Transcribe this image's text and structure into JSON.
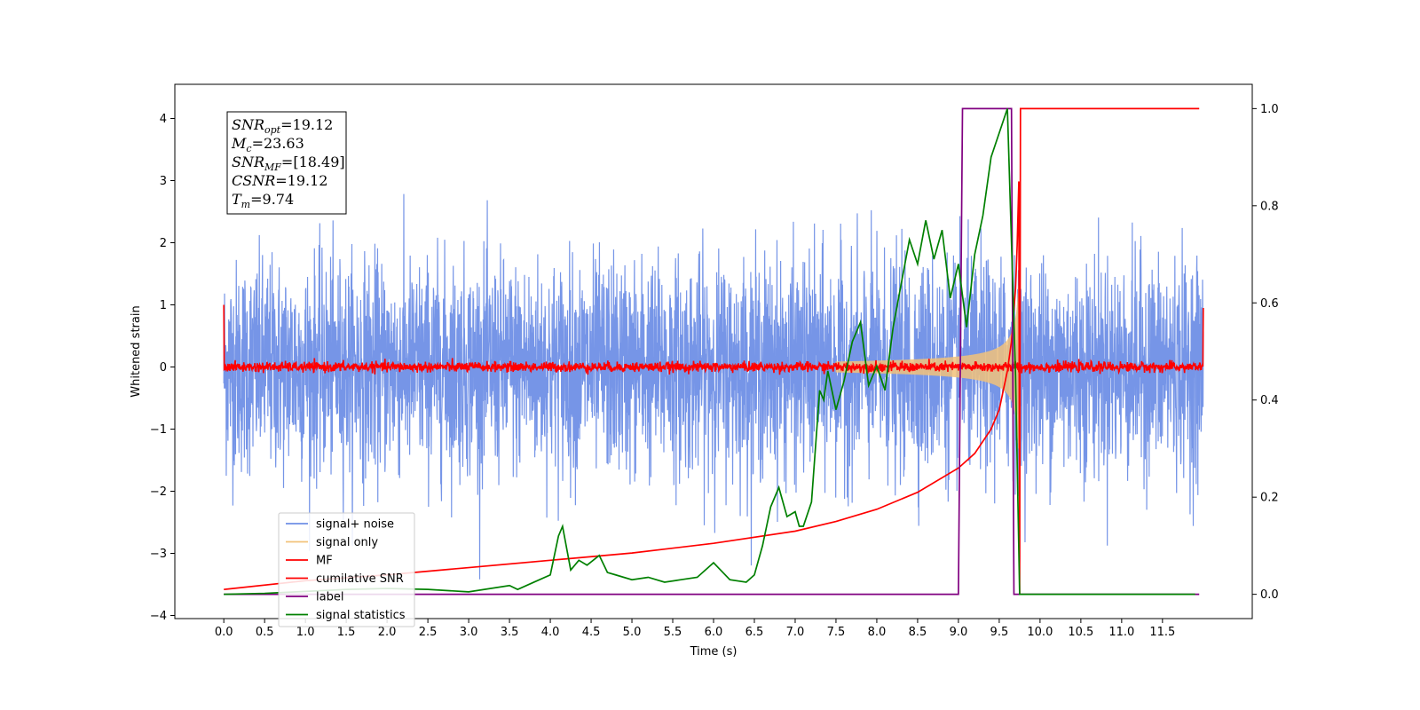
{
  "chart_data": {
    "type": "line",
    "xlabel": "Time (s)",
    "ylabel": "Whitened strain",
    "xlim": [
      -0.6,
      12.6
    ],
    "ylim_left": [
      -4.05,
      4.55
    ],
    "ylim_right": [
      -0.05,
      1.05
    ],
    "xticks": [
      0.0,
      0.5,
      1.0,
      1.5,
      2.0,
      2.5,
      3.0,
      3.5,
      4.0,
      4.5,
      5.0,
      5.5,
      6.0,
      6.5,
      7.0,
      7.5,
      8.0,
      8.5,
      9.0,
      9.5,
      10.0,
      10.5,
      11.0,
      11.5
    ],
    "xtick_labels": [
      "0.0",
      "0.5",
      "1.0",
      "1.5",
      "2.0",
      "2.5",
      "3.0",
      "3.5",
      "4.0",
      "4.5",
      "5.0",
      "5.5",
      "6.0",
      "6.5",
      "7.0",
      "7.5",
      "8.0",
      "8.5",
      "9.0",
      "9.5",
      "10.0",
      "10.5",
      "11.0",
      "11.5"
    ],
    "yticks_left": [
      -4,
      -3,
      -2,
      -1,
      0,
      1,
      2,
      3,
      4
    ],
    "ytick_labels_left": [
      "−4",
      "−3",
      "−2",
      "−1",
      "0",
      "1",
      "2",
      "3",
      "4"
    ],
    "yticks_right": [
      0.0,
      0.2,
      0.4,
      0.6,
      0.8,
      1.0
    ],
    "ytick_labels_right": [
      "0.0",
      "0.2",
      "0.4",
      "0.6",
      "0.8",
      "1.0"
    ],
    "grid": false,
    "legend_position": "lower-left",
    "series": [
      {
        "name": "signal+ noise",
        "axis": "left",
        "color": "#6f8fe6",
        "kind": "noise",
        "x_range": [
          0.0,
          12.0
        ],
        "approx_std": 0.85,
        "approx_range": [
          -3.6,
          3.7
        ]
      },
      {
        "name": "signal only",
        "axis": "left",
        "color": "#f2c27a",
        "kind": "chirp",
        "x_range": [
          7.5,
          9.74
        ],
        "peak_time": 9.74,
        "peak_amplitude": 1.5
      },
      {
        "name": "MF",
        "axis": "left",
        "color": "#ff0000",
        "kind": "noise",
        "x_range": [
          0.0,
          12.0
        ],
        "approx_std": 0.04,
        "edge_values": [
          1.0,
          0.95
        ]
      },
      {
        "name": "cumilative SNR",
        "axis": "right",
        "color": "#ff0000",
        "x": [
          0.0,
          1.0,
          2.0,
          3.0,
          4.0,
          5.0,
          6.0,
          7.0,
          7.5,
          8.0,
          8.5,
          9.0,
          9.2,
          9.4,
          9.5,
          9.6,
          9.65,
          9.7,
          9.72,
          9.74,
          9.75,
          9.76,
          11.95
        ],
        "y": [
          0.01,
          0.028,
          0.04,
          0.055,
          0.07,
          0.085,
          0.105,
          0.13,
          0.15,
          0.175,
          0.21,
          0.26,
          0.29,
          0.34,
          0.38,
          0.46,
          0.52,
          0.63,
          0.72,
          0.85,
          0.0,
          1.0,
          1.0
        ]
      },
      {
        "name": "label",
        "axis": "right",
        "color": "#800080",
        "x": [
          0.0,
          9.0,
          9.05,
          9.65,
          9.68,
          11.95
        ],
        "y": [
          0.0,
          0.0,
          1.0,
          1.0,
          0.0,
          0.0
        ]
      },
      {
        "name": "signal statistics",
        "axis": "right",
        "color": "#008000",
        "x": [
          0.0,
          0.5,
          1.0,
          1.5,
          2.0,
          2.5,
          3.0,
          3.5,
          3.6,
          3.8,
          4.0,
          4.1,
          4.15,
          4.25,
          4.35,
          4.45,
          4.6,
          4.7,
          4.8,
          5.0,
          5.2,
          5.4,
          5.6,
          5.8,
          6.0,
          6.2,
          6.4,
          6.5,
          6.6,
          6.7,
          6.8,
          6.9,
          7.0,
          7.05,
          7.1,
          7.2,
          7.3,
          7.35,
          7.4,
          7.5,
          7.6,
          7.7,
          7.8,
          7.9,
          8.0,
          8.1,
          8.2,
          8.3,
          8.4,
          8.5,
          8.6,
          8.7,
          8.8,
          8.9,
          9.0,
          9.1,
          9.2,
          9.3,
          9.4,
          9.5,
          9.6,
          9.7,
          9.75,
          9.8,
          9.85,
          11.9
        ],
        "y": [
          0.0,
          0.002,
          0.006,
          0.01,
          0.012,
          0.01,
          0.005,
          0.018,
          0.01,
          0.025,
          0.04,
          0.12,
          0.14,
          0.05,
          0.07,
          0.06,
          0.08,
          0.045,
          0.04,
          0.03,
          0.035,
          0.025,
          0.03,
          0.035,
          0.065,
          0.03,
          0.025,
          0.04,
          0.1,
          0.18,
          0.22,
          0.16,
          0.17,
          0.14,
          0.14,
          0.19,
          0.42,
          0.4,
          0.46,
          0.38,
          0.44,
          0.52,
          0.56,
          0.43,
          0.47,
          0.42,
          0.55,
          0.64,
          0.73,
          0.68,
          0.77,
          0.69,
          0.75,
          0.61,
          0.68,
          0.55,
          0.7,
          0.78,
          0.9,
          0.95,
          1.0,
          0.45,
          0.0,
          0.0,
          0.0,
          0.0
        ]
      }
    ],
    "annotations": [
      {
        "base": "SNR",
        "sub": "opt",
        "value": "=19.12"
      },
      {
        "base": "M",
        "sub": "c",
        "value": "=23.63"
      },
      {
        "base": "SNR",
        "sub": "MF",
        "value": "=[18.49]"
      },
      {
        "base": "CSNR",
        "sub": "",
        "value": "=19.12"
      },
      {
        "base": "T",
        "sub": "m",
        "value": "=9.74"
      }
    ]
  }
}
